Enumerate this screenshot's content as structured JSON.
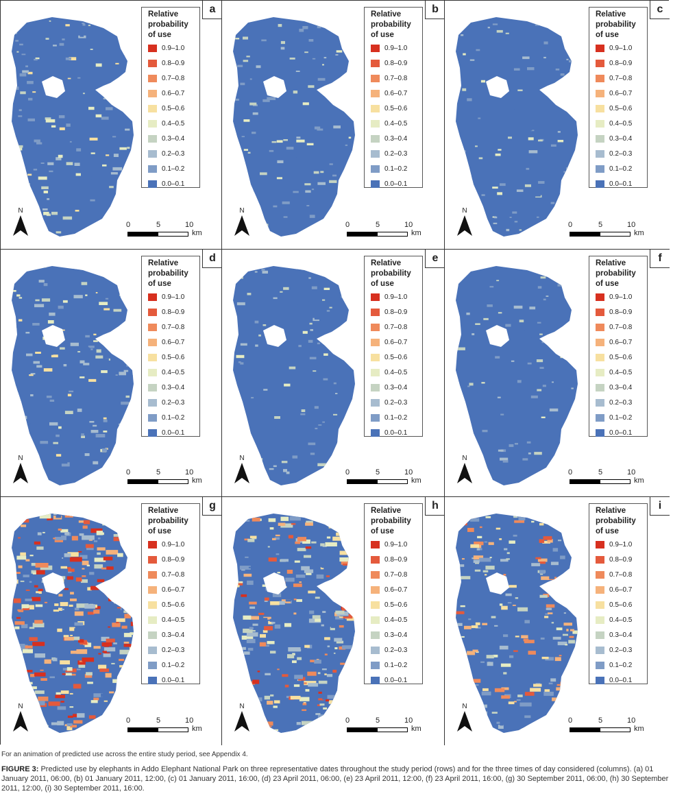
{
  "legend": {
    "title_lines": [
      "Relative",
      "probability",
      "of use"
    ],
    "classes": [
      {
        "label": "0.9–1.0",
        "color": "#d7301f"
      },
      {
        "label": "0.8–0.9",
        "color": "#e45a3c"
      },
      {
        "label": "0.7–0.8",
        "color": "#ef8a5b"
      },
      {
        "label": "0.6–0.7",
        "color": "#f5b27b"
      },
      {
        "label": "0.5–0.6",
        "color": "#f7e0a0"
      },
      {
        "label": "0.4–0.5",
        "color": "#e6ecc3"
      },
      {
        "label": "0.3–0.4",
        "color": "#c5d3c2"
      },
      {
        "label": "0.2–0.3",
        "color": "#a7bccf"
      },
      {
        "label": "0.1–0.2",
        "color": "#7f9cc6"
      },
      {
        "label": "0.0–0.1",
        "color": "#4a72b8"
      }
    ]
  },
  "scale_bar": {
    "ticks": [
      "0",
      "5",
      "10"
    ],
    "unit": "km"
  },
  "north_label": "N",
  "panels": [
    {
      "label": "a",
      "intensity": 0.15
    },
    {
      "label": "b",
      "intensity": 0.12
    },
    {
      "label": "c",
      "intensity": 0.08
    },
    {
      "label": "d",
      "intensity": 0.18
    },
    {
      "label": "e",
      "intensity": 0.07
    },
    {
      "label": "f",
      "intensity": 0.05
    },
    {
      "label": "g",
      "intensity": 0.55
    },
    {
      "label": "h",
      "intensity": 0.45
    },
    {
      "label": "i",
      "intensity": 0.38
    }
  ],
  "footnote": "For an animation of predicted use across the entire study period, see Appendix 4.",
  "caption": {
    "label": "FIGURE 3:",
    "text": " Predicted use by elephants in Addo Elephant National Park on three representative dates throughout the study period (rows) and for the three times of day considered (columns). (a) 01 January 2011, 06:00, (b) 01 January 2011, 12:00, (c) 01 January 2011, 16:00, (d) 23 April 2011, 06:00, (e) 23 April 2011, 12:00, (f) 23 April 2011, 16:00, (g) 30 September 2011, 06:00, (h) 30 September 2011, 12:00, (i) 30 September 2011, 16:00."
  }
}
